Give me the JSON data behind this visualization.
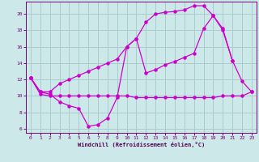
{
  "background_color": "#cce8e8",
  "grid_color": "#aacccc",
  "line_color": "#cc00cc",
  "xlabel": "Windchill (Refroidissement éolien,°C)",
  "xlim": [
    -0.5,
    23.5
  ],
  "ylim": [
    5.5,
    21.5
  ],
  "yticks": [
    6,
    8,
    10,
    12,
    14,
    16,
    18,
    20
  ],
  "xticks": [
    0,
    1,
    2,
    3,
    4,
    5,
    6,
    7,
    8,
    9,
    10,
    11,
    12,
    13,
    14,
    15,
    16,
    17,
    18,
    19,
    20,
    21,
    22,
    23
  ],
  "line_upper_x": [
    0,
    1,
    2,
    3,
    4,
    5,
    6,
    7,
    8,
    9,
    10,
    11,
    12,
    13,
    14,
    15,
    16,
    17,
    18,
    19,
    20,
    21,
    22,
    23
  ],
  "line_upper_y": [
    12.2,
    10.5,
    10.5,
    11.5,
    12.0,
    12.5,
    13.0,
    13.5,
    14.0,
    14.5,
    16.0,
    17.0,
    19.0,
    20.0,
    20.2,
    20.3,
    20.5,
    21.0,
    21.0,
    19.8,
    18.2,
    14.3,
    11.8,
    10.5
  ],
  "line_mid_x": [
    0,
    1,
    2,
    3,
    4,
    5,
    6,
    7,
    8,
    9,
    10,
    11,
    12,
    13,
    14,
    15,
    16,
    17,
    18,
    19,
    20,
    21
  ],
  "line_mid_y": [
    12.2,
    10.5,
    10.2,
    9.3,
    8.8,
    8.5,
    6.3,
    6.5,
    7.3,
    9.8,
    16.0,
    17.0,
    12.8,
    13.2,
    13.8,
    14.2,
    14.7,
    15.2,
    18.2,
    19.8,
    18.0,
    14.3
  ],
  "line_flat_x": [
    0,
    1,
    2,
    3,
    4,
    5,
    6,
    7,
    8,
    9,
    10,
    11,
    12,
    13,
    14,
    15,
    16,
    17,
    18,
    19,
    20,
    21,
    22,
    23
  ],
  "line_flat_y": [
    12.2,
    10.2,
    10.0,
    10.0,
    10.0,
    10.0,
    10.0,
    10.0,
    10.0,
    10.0,
    10.0,
    9.8,
    9.8,
    9.8,
    9.8,
    9.8,
    9.8,
    9.8,
    9.8,
    9.8,
    10.0,
    10.0,
    10.0,
    10.5
  ]
}
